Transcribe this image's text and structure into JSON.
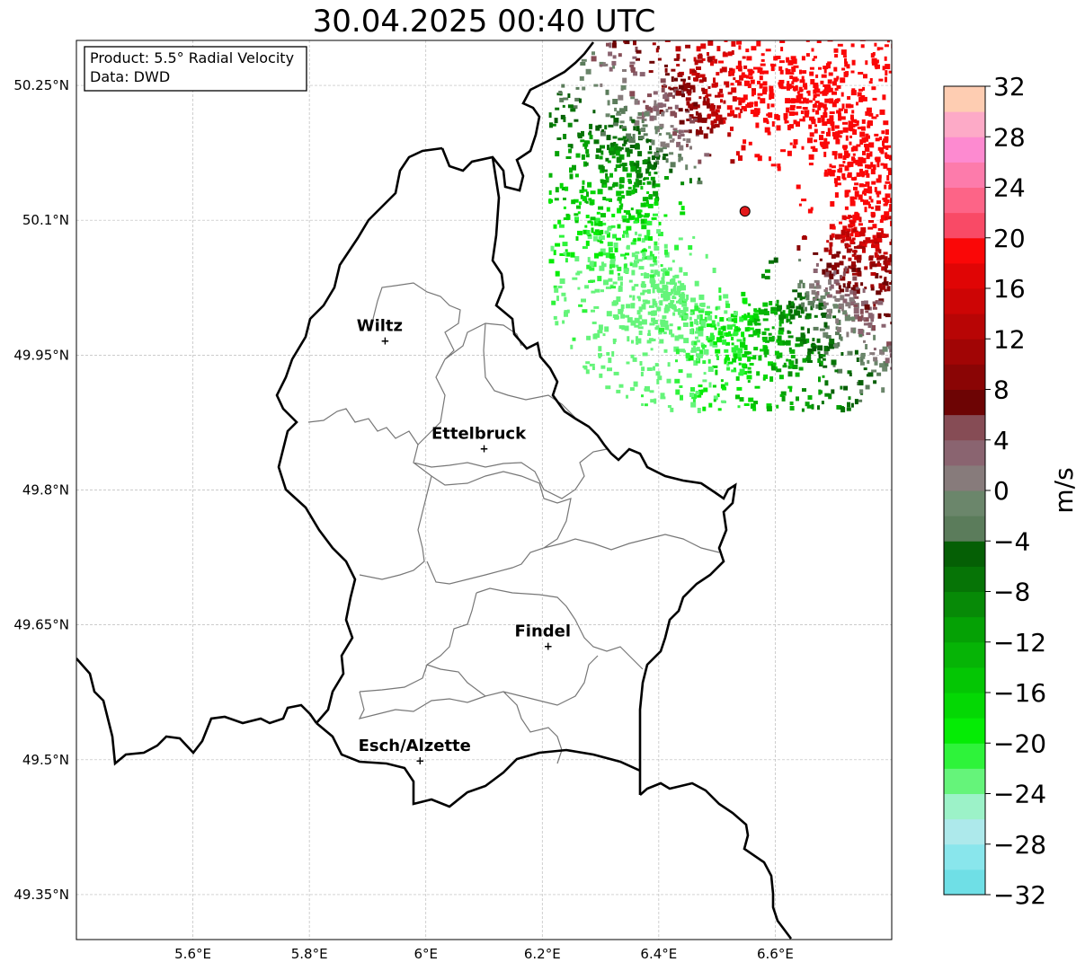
{
  "title": "30.04.2025 00:40 UTC",
  "info_box": {
    "product": "Product: 5.5° Radial Velocity",
    "data": "Data: DWD"
  },
  "axes": {
    "lon_range": [
      5.4,
      6.8
    ],
    "lat_range": [
      49.3,
      50.3
    ],
    "x_ticks": [
      {
        "value": 5.6,
        "label": "5.6°E"
      },
      {
        "value": 5.8,
        "label": "5.8°E"
      },
      {
        "value": 6.0,
        "label": "6°E"
      },
      {
        "value": 6.2,
        "label": "6.2°E"
      },
      {
        "value": 6.4,
        "label": "6.4°E"
      },
      {
        "value": 6.6,
        "label": "6.6°E"
      }
    ],
    "y_ticks": [
      {
        "value": 49.35,
        "label": "49.35°N"
      },
      {
        "value": 49.5,
        "label": "49.5°N"
      },
      {
        "value": 49.65,
        "label": "49.65°N"
      },
      {
        "value": 49.8,
        "label": "49.8°N"
      },
      {
        "value": 49.95,
        "label": "49.95°N"
      },
      {
        "value": 50.1,
        "label": "50.1°N"
      },
      {
        "value": 50.25,
        "label": "50.25°N"
      }
    ],
    "grid": true
  },
  "cities": [
    {
      "name": "Wiltz",
      "lon": 5.93,
      "lat": 49.967
    },
    {
      "name": "Ettelbruck",
      "lon": 6.1,
      "lat": 49.847
    },
    {
      "name": "Findel",
      "lon": 6.21,
      "lat": 49.627
    },
    {
      "name": "Esch/Alzette",
      "lon": 5.99,
      "lat": 49.5
    }
  ],
  "radar_site": {
    "lon": 6.548,
    "lat": 50.11,
    "color": "#e31a1c"
  },
  "colorbar": {
    "label": "m/s",
    "min": -32,
    "max": 32,
    "ticks": [
      32,
      28,
      24,
      20,
      16,
      12,
      8,
      4,
      0,
      -4,
      -8,
      -12,
      -16,
      -20,
      -24,
      -28,
      -32
    ],
    "tick_labels": [
      "32",
      "28",
      "24",
      "20",
      "16",
      "12",
      "8",
      "4",
      "0",
      "−4",
      "−8",
      "−12",
      "−16",
      "−20",
      "−24",
      "−28",
      "−32"
    ],
    "colors_bottom_to_top": [
      "#6fdfe6",
      "#89e6ec",
      "#ade9eb",
      "#9cf2c8",
      "#65f47a",
      "#2ef33a",
      "#05ec05",
      "#04d804",
      "#04c604",
      "#06b406",
      "#05a105",
      "#078a07",
      "#067406",
      "#055f05",
      "#5b7c5b",
      "#6b866b",
      "#877b7b",
      "#8a6470",
      "#864c55",
      "#6d0404",
      "#8a0505",
      "#a10505",
      "#b80505",
      "#cd0505",
      "#e00505",
      "#fa0707",
      "#f94a66",
      "#fd6487",
      "#fd7bab",
      "#fd8ad0",
      "#fdaac7",
      "#fecdb2"
    ]
  }
}
